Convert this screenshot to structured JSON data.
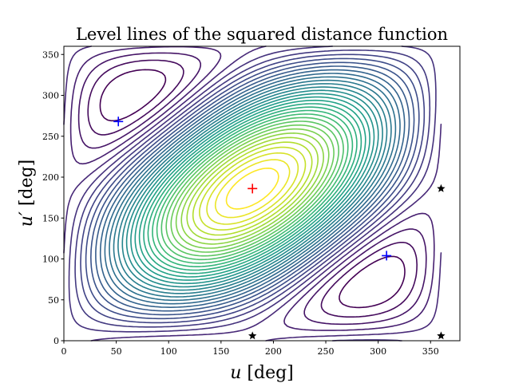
{
  "chart_data": {
    "type": "contour",
    "title": "Level lines of the squared distance function",
    "xlabel": "u [deg]",
    "ylabel": "u′ [deg]",
    "xlim": [
      0,
      378
    ],
    "ylim": [
      0,
      360
    ],
    "xticks": [
      0,
      50,
      100,
      150,
      200,
      250,
      300,
      350
    ],
    "yticks": [
      0,
      50,
      100,
      150,
      200,
      250,
      300,
      350
    ],
    "colormap": "viridis",
    "grid": false,
    "n_levels": 36,
    "markers": {
      "minima": {
        "color": "#0000ff",
        "symbol": "plus",
        "points": [
          [
            52,
            268
          ],
          [
            308,
            104
          ]
        ]
      },
      "maximum": {
        "color": "#ff0000",
        "symbol": "plus",
        "points": [
          [
            180,
            186
          ]
        ]
      },
      "saddles": {
        "color": "#000000",
        "symbol": "star",
        "points": [
          [
            180,
            6
          ],
          [
            360,
            6
          ],
          [
            360,
            186
          ]
        ]
      }
    }
  }
}
